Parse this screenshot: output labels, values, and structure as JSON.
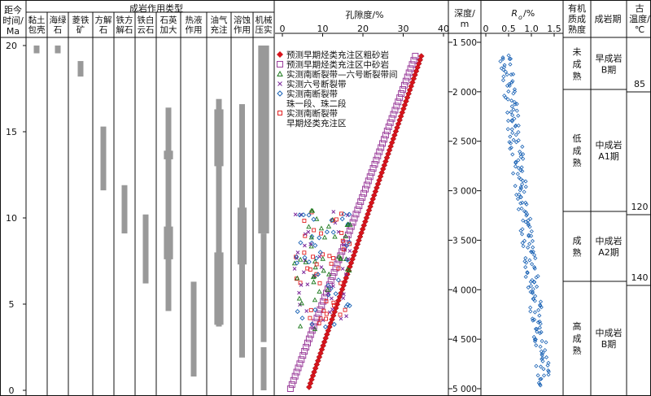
{
  "headers": {
    "time_axis": [
      "距今",
      "时间/",
      "Ma"
    ],
    "diagenesis_types": "成岩作用类型",
    "porosity_axis": "孔隙度/%",
    "depth_axis": [
      "深度/",
      "m"
    ],
    "ro_axis": {
      "main": "R",
      "sub": "o",
      "unit": "/%"
    },
    "maturity_col": [
      "有机",
      "质成",
      "熟度"
    ],
    "stage_col": "成岩期",
    "paleotemp_col": [
      "古",
      "温度/",
      "℃"
    ]
  },
  "diagenesis_columns": [
    {
      "lines": [
        "黏土",
        "包壳"
      ],
      "bars": [
        {
          "from": 20,
          "to": 19.55
        }
      ]
    },
    {
      "lines": [
        "海绿",
        "石"
      ],
      "bars": [
        {
          "from": 20,
          "to": 19.55
        }
      ]
    },
    {
      "lines": [
        "菱铁",
        "矿"
      ],
      "bars": [
        {
          "from": 19.1,
          "to": 18.2
        }
      ]
    },
    {
      "lines": [
        "方解",
        "石"
      ],
      "bars": [
        {
          "from": 15.3,
          "to": 11.6
        }
      ]
    },
    {
      "lines": [
        "铁方",
        "解石"
      ],
      "bars": [
        {
          "from": 11.9,
          "to": 9.1
        }
      ]
    },
    {
      "lines": [
        "铁白",
        "云石"
      ],
      "bars": [
        {
          "from": 10.2,
          "to": 6.2
        }
      ]
    },
    {
      "lines": [
        "石英",
        "加大"
      ],
      "bars": [
        {
          "from": 16.4,
          "to": 4.6
        },
        {
          "from": 9.5,
          "to": 7.6,
          "w": 1.6
        },
        {
          "from": 13.9,
          "to": 13.4,
          "w": 1.6
        }
      ]
    },
    {
      "lines": [
        "热液",
        "作用"
      ],
      "bars": [
        {
          "from": 6.3,
          "to": 0.8
        }
      ]
    },
    {
      "lines": [
        "油气",
        "充注"
      ],
      "bars": [
        {
          "from": 16.9,
          "to": 3.7
        },
        {
          "from": 16.3,
          "to": 13.0,
          "w": 1.6
        },
        {
          "from": 8.0,
          "to": 3.8,
          "w": 1.6
        }
      ]
    },
    {
      "lines": [
        "溶蚀",
        "作用"
      ],
      "bars": [
        {
          "from": 16.6,
          "to": 1.9
        },
        {
          "from": 10.6,
          "to": 7.3,
          "w": 1.6
        }
      ]
    },
    {
      "lines": [
        "机械",
        "压实"
      ],
      "bars": [
        {
          "from": 20,
          "to": 9.1,
          "w": 1.9
        },
        {
          "from": 9.1,
          "to": 2.8
        },
        {
          "from": 2.5,
          "to": 0
        }
      ]
    }
  ],
  "time_ticks": [
    "0",
    "5",
    "10",
    "15",
    "20"
  ],
  "porosity_ticks": [
    "0",
    "10",
    "20",
    "30",
    "40"
  ],
  "depth_ticks": [
    "1 500",
    "2 000",
    "2 500",
    "3 000",
    "3 500",
    "4 000",
    "4 500",
    "5 000"
  ],
  "ro_ticks": [
    "0",
    "0.5",
    "1.0",
    "1.5"
  ],
  "legend": [
    {
      "lines": [
        "预测早期烃类充注区粗砂岩"
      ],
      "marker": "diamond-filled",
      "color": "#d8141c"
    },
    {
      "lines": [
        "预测早期烃类充注区中砂岩"
      ],
      "marker": "square-open",
      "color": "#9b3f9b"
    },
    {
      "lines": [
        "实测南断裂带—六号断裂带间"
      ],
      "marker": "triangle-open",
      "color": "#1e7a1e"
    },
    {
      "lines": [
        "实测六号断裂带"
      ],
      "marker": "x",
      "color": "#7d2a9b"
    },
    {
      "lines": [
        "实测南断裂带",
        "珠一段、珠二段"
      ],
      "marker": "diamond-open",
      "color": "#1b63b5"
    },
    {
      "lines": [
        "实测南断裂带",
        "早期烃类充注区"
      ],
      "marker": "square-small",
      "color": "#e32222"
    }
  ],
  "maturity": [
    {
      "lines": [
        "未",
        "成",
        "熟"
      ]
    },
    {
      "lines": [
        "低",
        "成",
        "熟"
      ]
    },
    {
      "lines": [
        "成",
        "熟"
      ]
    },
    {
      "lines": [
        "高",
        "成",
        "熟"
      ]
    }
  ],
  "stages": [
    {
      "lines": [
        "早成岩",
        "B期"
      ]
    },
    {
      "lines": [
        "中成岩",
        "A1期"
      ]
    },
    {
      "lines": [
        "中成岩",
        "A2期"
      ]
    },
    {
      "lines": [
        "中成岩",
        "B期"
      ]
    }
  ],
  "paleotemps": [
    "85",
    "120",
    "140"
  ],
  "colors": {
    "bar": "#999999",
    "axis": "#111111"
  }
}
